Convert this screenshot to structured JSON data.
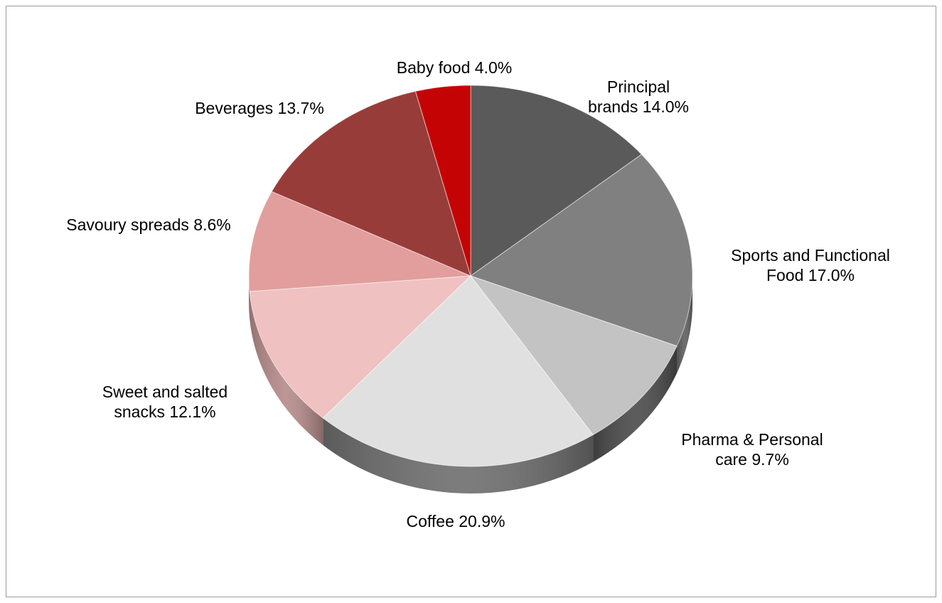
{
  "chart_data": {
    "type": "pie",
    "three_d": true,
    "legend": "none",
    "slices": [
      {
        "label_lines": [
          "Principal",
          "brands 14.0%"
        ],
        "category": "Principal brands",
        "value": 14.0,
        "color": "#5a5a5a",
        "side_color": "#3a3a3a"
      },
      {
        "label_lines": [
          "Sports and Functional",
          "Food 17.0%"
        ],
        "category": "Sports and Functional Food",
        "value": 17.0,
        "color": "#808080",
        "side_color": "#5e5e5e"
      },
      {
        "label_lines": [
          "Pharma & Personal",
          "care 9.7%"
        ],
        "category": "Pharma & Personal care",
        "value": 9.7,
        "color": "#c3c3c3",
        "side_color": "#4a4a4a"
      },
      {
        "label_lines": [
          "Coffee 20.9%"
        ],
        "category": "Coffee",
        "value": 20.9,
        "color": "#e0e0e0",
        "side_color": "#6e6e6e"
      },
      {
        "label_lines": [
          "Sweet and salted",
          "snacks 12.1%"
        ],
        "category": "Sweet and salted snacks",
        "value": 12.1,
        "color": "#efc1c1",
        "side_color": "#b58a8a"
      },
      {
        "label_lines": [
          "Savoury spreads 8.6%"
        ],
        "category": "Savoury spreads",
        "value": 8.6,
        "color": "#e29e9c",
        "side_color": "#a06a68"
      },
      {
        "label_lines": [
          "Beverages 13.7%"
        ],
        "category": "Beverages",
        "value": 13.7,
        "color": "#983c3a",
        "side_color": "#6a2422"
      },
      {
        "label_lines": [
          "Baby food 4.0%"
        ],
        "category": "Baby food",
        "value": 4.0,
        "color": "#c40404",
        "side_color": "#8a0000"
      }
    ]
  }
}
